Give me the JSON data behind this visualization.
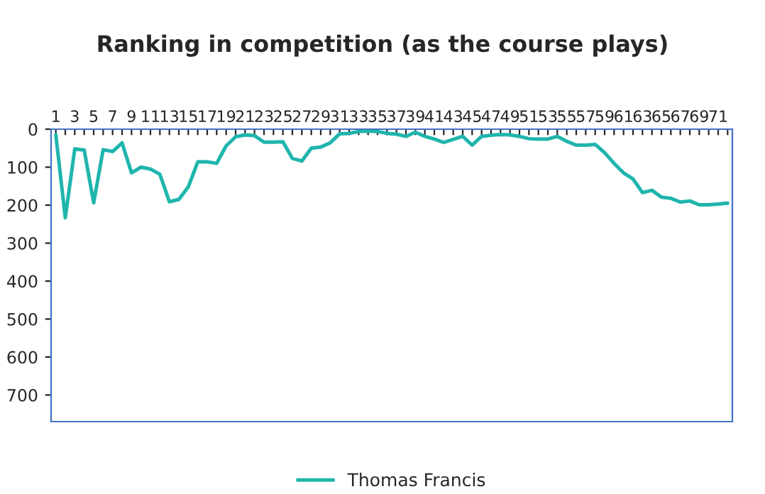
{
  "chart_data": {
    "type": "line",
    "title": "Ranking in competition (as the course plays)",
    "categories": [
      "1",
      null,
      "3",
      null,
      "5",
      null,
      "7",
      null,
      "9",
      null,
      "11",
      null,
      "13",
      null,
      "15",
      null,
      "17",
      null,
      "19",
      null,
      "21",
      null,
      "23",
      null,
      "25",
      null,
      "27",
      null,
      "29",
      null,
      "31",
      null,
      "33",
      null,
      "35",
      null,
      "37",
      null,
      "39",
      null,
      "41",
      null,
      "43",
      null,
      "45",
      null,
      "47",
      null,
      "49",
      null,
      "51",
      null,
      "53",
      null,
      "55",
      null,
      "57",
      null,
      "59",
      null,
      "61",
      null,
      "63",
      null,
      "65",
      null,
      "67",
      null,
      "69",
      null,
      "71",
      null
    ],
    "series": [
      {
        "name": "Thomas Francis",
        "color": "#1fb5ad",
        "values": [
          15,
          233,
          52,
          55,
          194,
          54,
          59,
          36,
          115,
          100,
          105,
          119,
          191,
          185,
          152,
          86,
          86,
          90,
          44,
          20,
          15,
          17,
          34,
          34,
          33,
          77,
          84,
          50,
          47,
          36,
          12,
          11,
          6,
          5,
          6,
          11,
          13,
          19,
          8,
          19,
          26,
          35,
          27,
          19,
          42,
          19,
          16,
          14,
          15,
          19,
          25,
          26,
          26,
          19,
          32,
          42,
          42,
          40,
          62,
          90,
          115,
          131,
          167,
          161,
          179,
          182,
          192,
          189,
          199,
          199,
          197,
          195
        ]
      }
    ],
    "ylim": [
      770,
      0
    ],
    "yticks": [
      0,
      100,
      200,
      300,
      400,
      500,
      600,
      700
    ],
    "grid": false,
    "legend": "bottom",
    "marker": "none",
    "line_style": "solid"
  }
}
